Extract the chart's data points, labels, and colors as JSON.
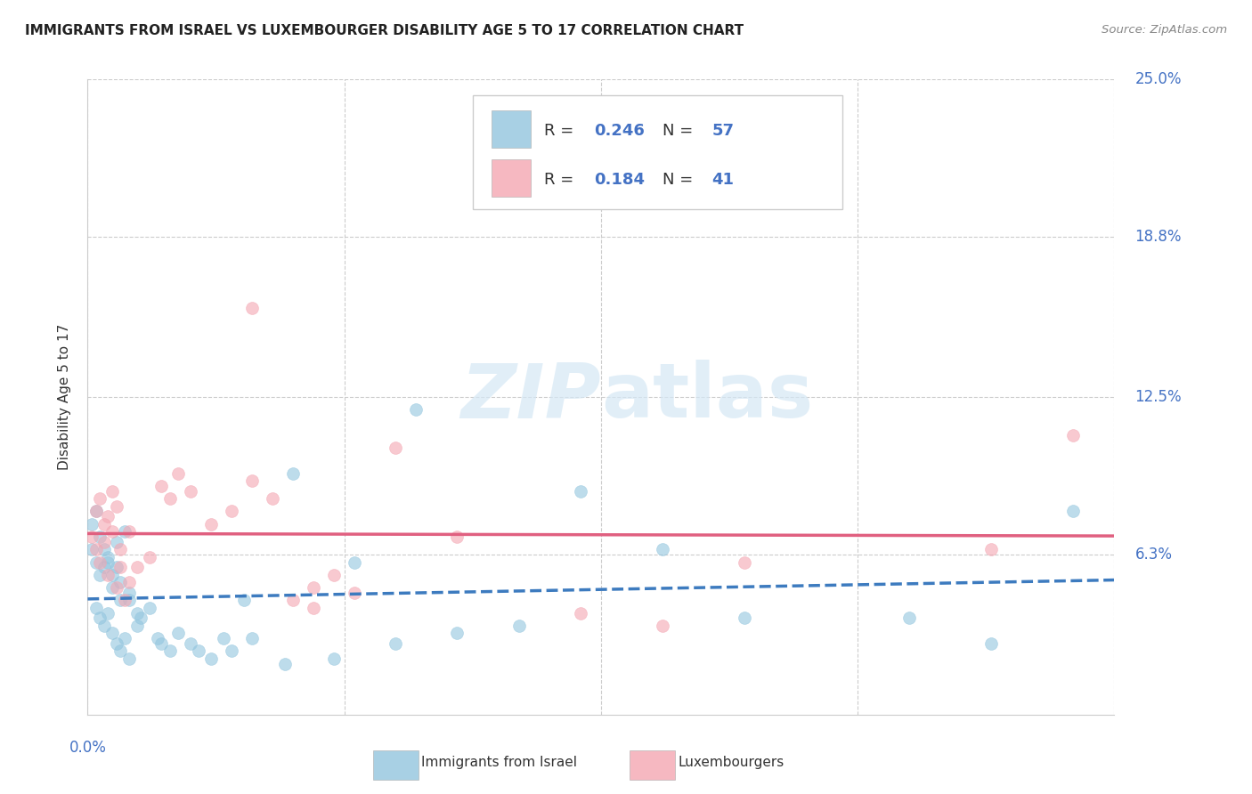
{
  "title": "IMMIGRANTS FROM ISRAEL VS LUXEMBOURGER DISABILITY AGE 5 TO 17 CORRELATION CHART",
  "source": "Source: ZipAtlas.com",
  "ylabel": "Disability Age 5 to 17",
  "legend_label_1": "Immigrants from Israel",
  "legend_label_2": "Luxembourgers",
  "R1": 0.246,
  "N1": 57,
  "R2": 0.184,
  "N2": 41,
  "color_blue": "#92C5DE",
  "color_pink": "#F4A6B2",
  "color_blue_line": "#3D7BBF",
  "color_pink_line": "#E06080",
  "ytick_labels": [
    "6.3%",
    "12.5%",
    "18.8%",
    "25.0%"
  ],
  "ytick_values": [
    0.063,
    0.125,
    0.188,
    0.25
  ],
  "xlim": [
    0.0,
    0.25
  ],
  "ylim": [
    0.0,
    0.25
  ],
  "watermark": "ZIPatlas",
  "israel_x": [
    0.001,
    0.002,
    0.003,
    0.004,
    0.005,
    0.006,
    0.007,
    0.008,
    0.009,
    0.01,
    0.002,
    0.003,
    0.004,
    0.005,
    0.006,
    0.007,
    0.008,
    0.009,
    0.01,
    0.012,
    0.013,
    0.015,
    0.017,
    0.018,
    0.02,
    0.022,
    0.025,
    0.027,
    0.03,
    0.033,
    0.001,
    0.002,
    0.003,
    0.004,
    0.005,
    0.006,
    0.007,
    0.008,
    0.01,
    0.012,
    0.035,
    0.04,
    0.048,
    0.06,
    0.075,
    0.09,
    0.105,
    0.12,
    0.14,
    0.16,
    0.038,
    0.05,
    0.065,
    0.08,
    0.2,
    0.22,
    0.24
  ],
  "israel_y": [
    0.065,
    0.06,
    0.055,
    0.058,
    0.062,
    0.05,
    0.068,
    0.045,
    0.072,
    0.048,
    0.042,
    0.038,
    0.035,
    0.04,
    0.032,
    0.028,
    0.025,
    0.03,
    0.022,
    0.035,
    0.038,
    0.042,
    0.03,
    0.028,
    0.025,
    0.032,
    0.028,
    0.025,
    0.022,
    0.03,
    0.075,
    0.08,
    0.07,
    0.065,
    0.06,
    0.055,
    0.058,
    0.052,
    0.045,
    0.04,
    0.025,
    0.03,
    0.02,
    0.022,
    0.028,
    0.032,
    0.035,
    0.088,
    0.065,
    0.038,
    0.045,
    0.095,
    0.06,
    0.12,
    0.038,
    0.028,
    0.08
  ],
  "lux_x": [
    0.001,
    0.002,
    0.003,
    0.004,
    0.005,
    0.006,
    0.007,
    0.008,
    0.009,
    0.01,
    0.002,
    0.003,
    0.004,
    0.005,
    0.006,
    0.007,
    0.008,
    0.01,
    0.012,
    0.015,
    0.018,
    0.02,
    0.022,
    0.025,
    0.03,
    0.035,
    0.04,
    0.045,
    0.05,
    0.055,
    0.06,
    0.065,
    0.12,
    0.14,
    0.16,
    0.04,
    0.055,
    0.075,
    0.09,
    0.22,
    0.24
  ],
  "lux_y": [
    0.07,
    0.065,
    0.06,
    0.068,
    0.055,
    0.072,
    0.05,
    0.058,
    0.045,
    0.052,
    0.08,
    0.085,
    0.075,
    0.078,
    0.088,
    0.082,
    0.065,
    0.072,
    0.058,
    0.062,
    0.09,
    0.085,
    0.095,
    0.088,
    0.075,
    0.08,
    0.092,
    0.085,
    0.045,
    0.042,
    0.055,
    0.048,
    0.04,
    0.035,
    0.06,
    0.16,
    0.05,
    0.105,
    0.07,
    0.065,
    0.11
  ]
}
